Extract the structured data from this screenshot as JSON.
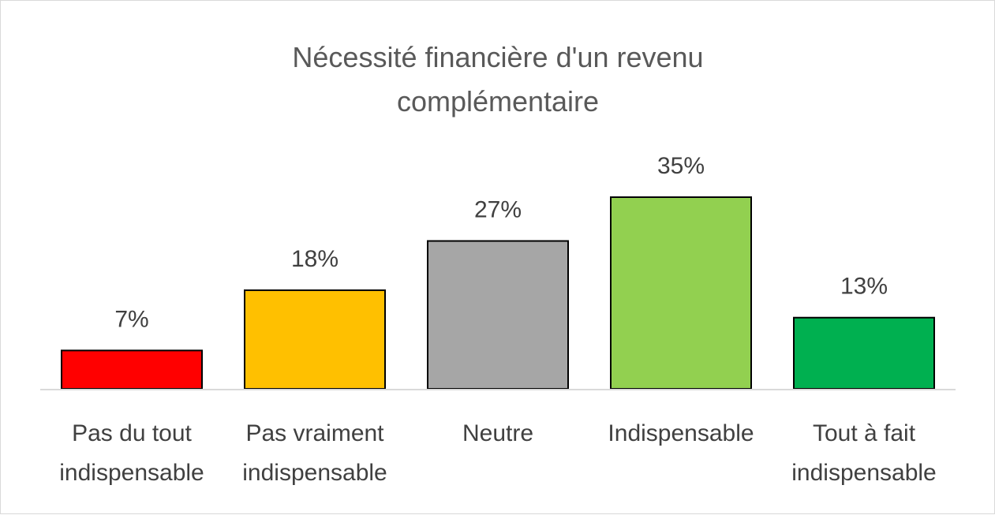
{
  "chart_data": {
    "type": "bar",
    "title_lines": [
      "Nécessité financière d'un revenu",
      "complémentaire"
    ],
    "categories": [
      [
        "Pas du tout",
        "indispensable"
      ],
      [
        "Pas vraiment",
        "indispensable"
      ],
      [
        "Neutre"
      ],
      [
        "Indispensable"
      ],
      [
        "Tout à fait",
        "indispensable"
      ]
    ],
    "values": [
      7,
      18,
      27,
      35,
      13
    ],
    "data_labels": [
      "7%",
      "18%",
      "27%",
      "35%",
      "13%"
    ],
    "colors": [
      "#ff0000",
      "#ffc000",
      "#a6a6a6",
      "#92d050",
      "#00b050"
    ],
    "ylim": [
      0,
      35
    ],
    "grid": false,
    "legend": "none"
  }
}
